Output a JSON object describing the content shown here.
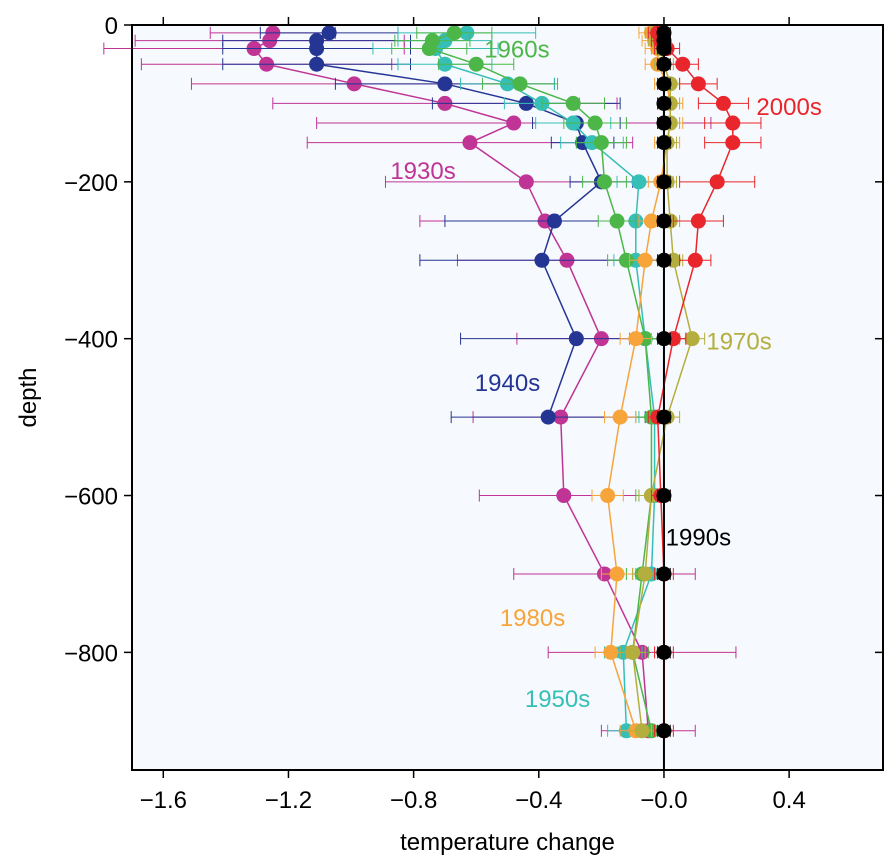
{
  "chart_data": {
    "type": "line",
    "xlabel": "temperature change",
    "ylabel": "depth",
    "xlim": [
      -1.7,
      0.7
    ],
    "ylim": [
      -950,
      0
    ],
    "xticks": [
      -1.6,
      -1.2,
      -0.8,
      -0.4,
      0.0,
      0.4
    ],
    "xtick_labels": [
      "−1.6",
      "−1.2",
      "−0.8",
      "−0.4",
      "−0.0",
      "0.4"
    ],
    "yticks": [
      0,
      -200,
      -400,
      -600,
      -800
    ],
    "ytick_labels": [
      "0",
      "−200",
      "−400",
      "−600",
      "−800"
    ],
    "grid": false,
    "legend": "none (series labeled inline)",
    "background": "#f6f9fd",
    "zero_line": 0,
    "depths": [
      -10,
      -20,
      -30,
      -50,
      -75,
      -100,
      -125,
      -150,
      -200,
      -250,
      -300,
      -400,
      -500,
      -600,
      -700,
      -800,
      -900
    ],
    "series": [
      {
        "name": "1930s",
        "color": "#bf3495",
        "values": [
          -1.25,
          -1.26,
          -1.31,
          -1.27,
          -0.99,
          -0.7,
          -0.48,
          -0.62,
          -0.44,
          -0.38,
          -0.31,
          -0.2,
          -0.33,
          -0.32,
          -0.19,
          -0.07,
          -0.05
        ],
        "err": [
          0.2,
          0.43,
          0.48,
          0.4,
          0.52,
          0.55,
          0.63,
          0.52,
          0.45,
          0.4,
          0.35,
          0.27,
          0.28,
          0.27,
          0.29,
          0.3,
          0.15
        ]
      },
      {
        "name": "1940s",
        "color": "#253593",
        "values": [
          -1.07,
          -1.11,
          -1.11,
          -1.11,
          -0.7,
          -0.44,
          -0.28,
          -0.26,
          -0.2,
          -0.35,
          -0.39,
          -0.28,
          -0.37,
          null,
          null,
          null,
          null
        ],
        "err": [
          0.22,
          0.3,
          0.3,
          0.3,
          0.35,
          0.3,
          0.14,
          0.1,
          0.1,
          0.35,
          0.39,
          0.37,
          0.31,
          null,
          null,
          null,
          null
        ]
      },
      {
        "name": "1950s",
        "color": "#36bfb6",
        "values": [
          -0.63,
          -0.7,
          -0.73,
          -0.7,
          -0.5,
          -0.39,
          -0.29,
          -0.23,
          -0.08,
          -0.09,
          -0.09,
          -0.06,
          -0.03,
          -0.03,
          -0.04,
          -0.13,
          -0.12
        ],
        "err": [
          0.22,
          0.15,
          0.2,
          0.15,
          0.15,
          0.12,
          0.12,
          0.1,
          0.07,
          0.07,
          0.07,
          0.05,
          0.05,
          0.05,
          0.05,
          0.06,
          0.06
        ]
      },
      {
        "name": "1960s",
        "color": "#4cb748",
        "values": [
          -0.67,
          -0.74,
          -0.75,
          -0.6,
          -0.46,
          -0.29,
          -0.22,
          -0.2,
          -0.19,
          -0.15,
          -0.12,
          -0.06,
          -0.04,
          -0.04,
          -0.07,
          -0.1,
          -0.04
        ],
        "err": [
          0.12,
          0.12,
          0.12,
          0.12,
          0.12,
          0.1,
          0.1,
          0.08,
          0.07,
          0.06,
          0.06,
          0.05,
          0.05,
          0.05,
          0.05,
          0.05,
          0.05
        ]
      },
      {
        "name": "1970s",
        "color": "#b4ae3e",
        "values": [
          -0.03,
          -0.02,
          -0.01,
          0.0,
          0.02,
          0.02,
          0.02,
          0.01,
          0.01,
          0.02,
          0.03,
          0.09,
          0.01,
          -0.04,
          -0.06,
          -0.1,
          -0.07
        ],
        "err": [
          0.03,
          0.03,
          0.03,
          0.03,
          0.03,
          0.03,
          0.03,
          0.03,
          0.03,
          0.03,
          0.03,
          0.04,
          0.04,
          0.04,
          0.04,
          0.04,
          0.04
        ]
      },
      {
        "name": "1980s",
        "color": "#f7a43a",
        "values": [
          -0.04,
          -0.03,
          -0.02,
          -0.02,
          0.01,
          0.02,
          0.02,
          0.01,
          -0.01,
          -0.04,
          -0.06,
          -0.09,
          -0.14,
          -0.18,
          -0.15,
          -0.17,
          -0.09
        ],
        "err": [
          0.04,
          0.04,
          0.04,
          0.04,
          0.04,
          0.04,
          0.04,
          0.04,
          0.04,
          0.04,
          0.05,
          0.05,
          0.05,
          0.05,
          0.05,
          0.05,
          0.05
        ]
      },
      {
        "name": "1990s",
        "color": "#000000",
        "values": [
          0.0,
          0.0,
          0.0,
          0.0,
          0.0,
          0.0,
          0.0,
          0.0,
          0.0,
          0.0,
          0.0,
          0.0,
          0.0,
          0.0,
          0.0,
          0.0,
          0.0
        ],
        "err": [
          0.02,
          0.02,
          0.02,
          0.02,
          0.02,
          0.02,
          0.02,
          0.02,
          0.02,
          0.02,
          0.02,
          0.02,
          0.02,
          0.02,
          0.02,
          0.02,
          0.02
        ]
      },
      {
        "name": "2000s",
        "color": "#e8262b",
        "values": [
          -0.02,
          -0.01,
          0.01,
          0.06,
          0.11,
          0.19,
          0.22,
          0.22,
          0.17,
          0.11,
          0.1,
          0.03,
          -0.02,
          -0.01,
          0.0,
          0.0,
          0.0
        ],
        "err": [
          0.03,
          0.03,
          0.04,
          0.05,
          0.06,
          0.08,
          0.09,
          0.09,
          0.12,
          0.08,
          0.05,
          0.04,
          0.03,
          0.03,
          0.03,
          0.03,
          0.03
        ]
      }
    ],
    "annotations": [
      {
        "text": "1960s",
        "series": "1960s",
        "x": -0.47,
        "y": -30
      },
      {
        "text": "2000s",
        "series": "2000s",
        "x": 0.4,
        "y": -103
      },
      {
        "text": "1930s",
        "series": "1930s",
        "x": -0.77,
        "y": -185
      },
      {
        "text": "1970s",
        "series": "1970s",
        "x": 0.24,
        "y": -402
      },
      {
        "text": "1940s",
        "series": "1940s",
        "x": -0.5,
        "y": -455
      },
      {
        "text": "1990s",
        "series": "1990s",
        "x": 0.11,
        "y": -652
      },
      {
        "text": "1980s",
        "series": "1980s",
        "x": -0.42,
        "y": -755
      },
      {
        "text": "1950s",
        "series": "1950s",
        "x": -0.34,
        "y": -858
      }
    ]
  }
}
